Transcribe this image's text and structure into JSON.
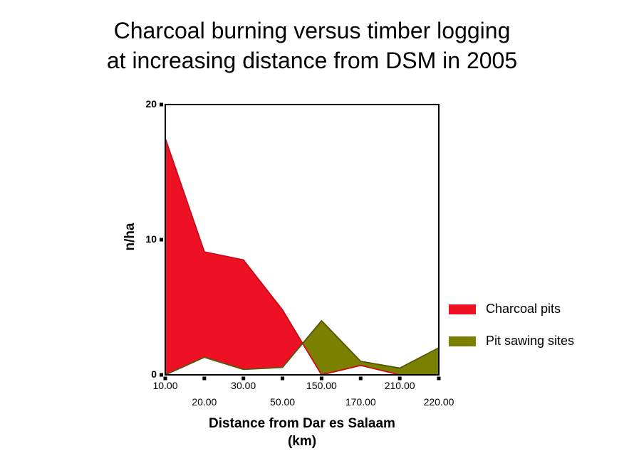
{
  "title": {
    "line1": "Charcoal burning versus timber logging",
    "line2": "at increasing distance from DSM in 2005"
  },
  "chart_data": {
    "type": "area",
    "style": "difference-area (fill between curves colored by upper series)",
    "x_values": [
      10,
      20,
      30,
      50,
      150,
      170,
      210,
      220
    ],
    "x_tick_labels": [
      "10.00",
      "20.00",
      "30.00",
      "50.00",
      "150.00",
      "170.00",
      "210.00",
      "220.00"
    ],
    "x_tick_label_layout": "staggered-two-rows",
    "series": [
      {
        "name": "Charcoal pits",
        "color": "#EE1124",
        "stroke": "#C90A18",
        "values": [
          17.5,
          9.1,
          8.5,
          4.8,
          0,
          0.7,
          0,
          0
        ]
      },
      {
        "name": "Pit sawing sites",
        "color": "#7C8000",
        "stroke": "#54560A",
        "values": [
          0,
          1.3,
          0.4,
          0.55,
          4.0,
          1.0,
          0.5,
          2.0
        ]
      }
    ],
    "ylabel": "n/ha",
    "xlabel_line1": "Distance from Dar es Salaam",
    "xlabel_line2": "(km)",
    "ylim": [
      0,
      20
    ],
    "yticks": [
      0,
      10,
      20
    ],
    "grid": false,
    "axis_color": "#000000",
    "tick_marker": "small-black-square",
    "background": "#FFFFFF",
    "legend_position": "right-middle"
  }
}
